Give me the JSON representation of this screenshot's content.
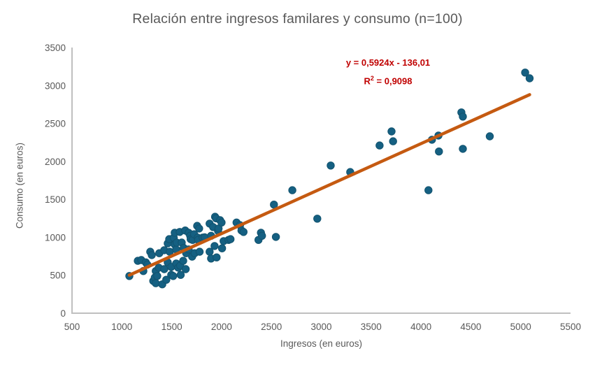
{
  "header": {
    "title": "Relación entre ingresos familares y consumo (n=100)"
  },
  "chart_data": {
    "type": "scatter",
    "title": "Relación entre ingresos familares y consumo (n=100)",
    "xlabel": "Ingresos (en euros)",
    "ylabel": "Consumo (en euros)",
    "xlim": [
      500,
      5500
    ],
    "ylim": [
      0,
      3500
    ],
    "x_ticks": [
      500,
      1000,
      1500,
      2000,
      2500,
      3000,
      3500,
      4000,
      4500,
      5000,
      5500
    ],
    "y_ticks": [
      0,
      500,
      1000,
      1500,
      2000,
      2500,
      3000,
      3500
    ],
    "grid": false,
    "legend": "none",
    "colors": {
      "point_fill": "#156082",
      "point_border": "#12536F",
      "axis_line": "#BFBFBF",
      "tick_text": "#595959",
      "trendline": "#C55A11",
      "equation_text_color": "#C00000"
    },
    "points": [
      [
        1075,
        490
      ],
      [
        1160,
        690
      ],
      [
        1195,
        700
      ],
      [
        1215,
        555
      ],
      [
        1240,
        670
      ],
      [
        1255,
        640
      ],
      [
        1285,
        810
      ],
      [
        1300,
        765
      ],
      [
        1315,
        425
      ],
      [
        1330,
        470
      ],
      [
        1340,
        555
      ],
      [
        1340,
        395
      ],
      [
        1355,
        490
      ],
      [
        1370,
        600
      ],
      [
        1375,
        790
      ],
      [
        1405,
        380
      ],
      [
        1425,
        580
      ],
      [
        1425,
        830
      ],
      [
        1445,
        440
      ],
      [
        1460,
        920
      ],
      [
        1460,
        670
      ],
      [
        1475,
        975
      ],
      [
        1480,
        810
      ],
      [
        1495,
        610
      ],
      [
        1495,
        505
      ],
      [
        1515,
        490
      ],
      [
        1520,
        995
      ],
      [
        1530,
        1060
      ],
      [
        1530,
        905
      ],
      [
        1545,
        840
      ],
      [
        1545,
        655
      ],
      [
        1550,
        930
      ],
      [
        1565,
        600
      ],
      [
        1580,
        1070
      ],
      [
        1585,
        625
      ],
      [
        1590,
        505
      ],
      [
        1600,
        930
      ],
      [
        1615,
        690
      ],
      [
        1620,
        860
      ],
      [
        1635,
        1090
      ],
      [
        1640,
        580
      ],
      [
        1645,
        790
      ],
      [
        1670,
        1060
      ],
      [
        1670,
        840
      ],
      [
        1685,
        1020
      ],
      [
        1690,
        975
      ],
      [
        1705,
        745
      ],
      [
        1710,
        965
      ],
      [
        1725,
        1040
      ],
      [
        1730,
        790
      ],
      [
        1755,
        1150
      ],
      [
        1760,
        995
      ],
      [
        1765,
        965
      ],
      [
        1775,
        1115
      ],
      [
        1780,
        810
      ],
      [
        1810,
        995
      ],
      [
        1830,
        1000
      ],
      [
        1880,
        1180
      ],
      [
        1880,
        810
      ],
      [
        1895,
        1020
      ],
      [
        1895,
        720
      ],
      [
        1915,
        1135
      ],
      [
        1930,
        885
      ],
      [
        1935,
        1270
      ],
      [
        1945,
        1250
      ],
      [
        1950,
        735
      ],
      [
        1965,
        1085
      ],
      [
        1970,
        1115
      ],
      [
        1985,
        1225
      ],
      [
        2000,
        1195
      ],
      [
        2005,
        855
      ],
      [
        2020,
        950
      ],
      [
        2070,
        965
      ],
      [
        2090,
        975
      ],
      [
        2150,
        1195
      ],
      [
        2185,
        1160
      ],
      [
        2200,
        1090
      ],
      [
        2220,
        1070
      ],
      [
        2370,
        965
      ],
      [
        2395,
        1060
      ],
      [
        2405,
        1020
      ],
      [
        2525,
        1430
      ],
      [
        2545,
        1005
      ],
      [
        2710,
        1620
      ],
      [
        2960,
        1245
      ],
      [
        3095,
        1945
      ],
      [
        3290,
        1860
      ],
      [
        3585,
        2210
      ],
      [
        3705,
        2395
      ],
      [
        3720,
        2265
      ],
      [
        4075,
        1620
      ],
      [
        4110,
        2285
      ],
      [
        4175,
        2340
      ],
      [
        4180,
        2130
      ],
      [
        4405,
        2645
      ],
      [
        4420,
        2590
      ],
      [
        4420,
        2165
      ],
      [
        4690,
        2330
      ],
      [
        5045,
        3170
      ],
      [
        5090,
        3095
      ]
    ],
    "trendline": {
      "slope": 0.5924,
      "intercept": -136.01,
      "x_range": [
        1075,
        5090
      ],
      "equation_text": "y = 0,5924x - 136,01",
      "r2_base": "R",
      "r2_sup": "2",
      "r2_rest": " = 0,9098"
    }
  }
}
